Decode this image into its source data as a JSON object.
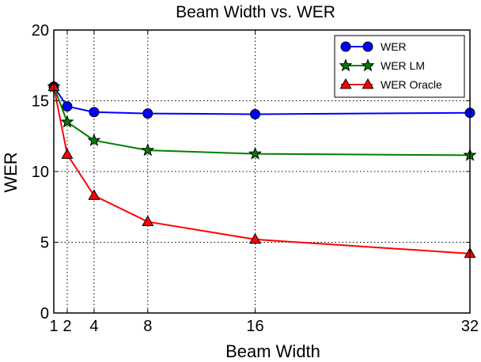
{
  "chart_data": {
    "type": "line",
    "title": "Beam Width vs. WER",
    "xlabel": "Beam Width",
    "ylabel": "WER",
    "xlim": [
      1,
      32
    ],
    "ylim": [
      0,
      20
    ],
    "x_ticks": [
      1,
      2,
      4,
      8,
      16,
      32
    ],
    "x_tick_labels": [
      "1",
      "2",
      "4",
      "8",
      "16",
      "32"
    ],
    "y_ticks": [
      0,
      5,
      10,
      15,
      20
    ],
    "y_tick_labels": [
      "0",
      "5",
      "10",
      "15",
      "20"
    ],
    "grid": true,
    "grid_style": "dotted",
    "legend_position": "top-right",
    "x": [
      1,
      2,
      4,
      8,
      16,
      32
    ],
    "series": [
      {
        "name": "WER",
        "values": [
          16.0,
          14.6,
          14.2,
          14.1,
          14.05,
          14.15
        ],
        "color": "#0000ff",
        "marker": "circle"
      },
      {
        "name": "WER LM",
        "values": [
          16.0,
          13.5,
          12.2,
          11.5,
          11.25,
          11.15
        ],
        "color": "#008000",
        "marker": "star"
      },
      {
        "name": "WER Oracle",
        "values": [
          16.0,
          11.2,
          8.3,
          6.45,
          5.2,
          4.2
        ],
        "color": "#ff0000",
        "marker": "triangle"
      }
    ]
  }
}
